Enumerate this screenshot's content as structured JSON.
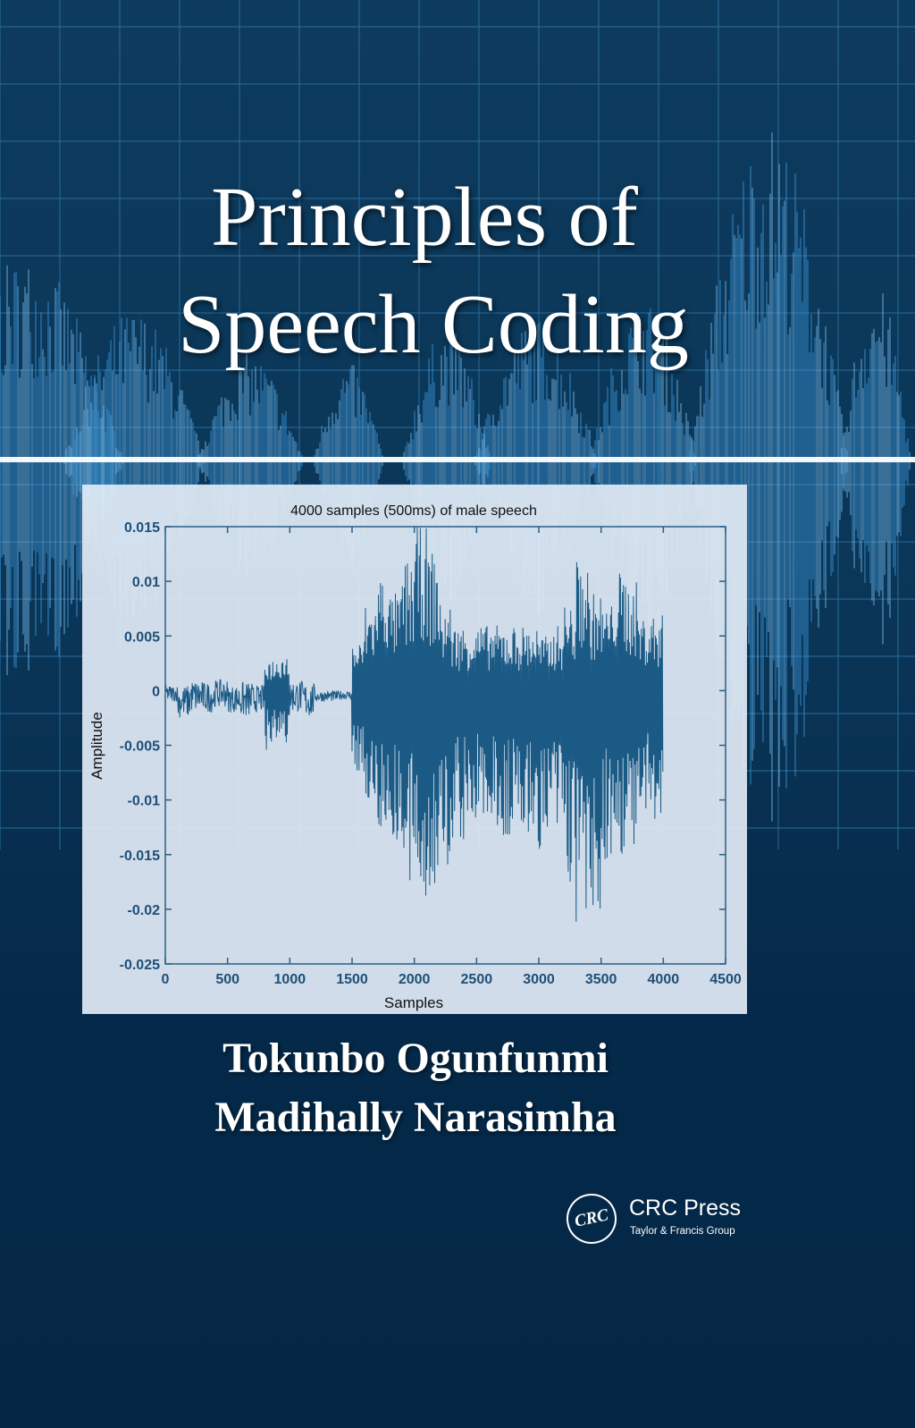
{
  "cover": {
    "title_line1": "Principles of",
    "title_line2": "Speech Coding",
    "authors": [
      "Tokunbo Ogunfunmi",
      "Madihally Narasimha"
    ],
    "publisher": {
      "logo_text": "CRC",
      "name": "CRC Press",
      "subtitle": "Taylor & Francis Group"
    },
    "colors": {
      "background": "#0a3556",
      "waveform": "#1a5a85",
      "accent_blue": "#3a8fd0"
    }
  },
  "chart_data": {
    "type": "line",
    "title": "4000 samples (500ms) of male speech",
    "xlabel": "Samples",
    "ylabel": "Amplitude",
    "xlim": [
      0,
      4500
    ],
    "ylim": [
      -0.025,
      0.015
    ],
    "xticks": [
      "0",
      "500",
      "1000",
      "1500",
      "2000",
      "2500",
      "3000",
      "3500",
      "4000",
      "4500"
    ],
    "yticks": [
      "0.015",
      "0.01",
      "0.005",
      "0",
      "-0.005",
      "-0.01",
      "-0.015",
      "-0.02",
      "-0.025"
    ],
    "grid": false,
    "envelope_step_samples": 100,
    "envelope_min": [
      -0.001,
      -0.0025,
      -0.002,
      -0.002,
      -0.0015,
      -0.002,
      -0.0025,
      -0.002,
      -0.0055,
      -0.005,
      -0.002,
      -0.0025,
      -0.001,
      -0.001,
      -0.0008,
      -0.0075,
      -0.011,
      -0.013,
      -0.014,
      -0.019,
      -0.019,
      -0.019,
      -0.017,
      -0.014,
      -0.013,
      -0.012,
      -0.013,
      -0.014,
      -0.013,
      -0.014,
      -0.015,
      -0.014,
      -0.018,
      -0.022,
      -0.022,
      -0.016,
      -0.015,
      -0.015,
      -0.013,
      -0.013
    ],
    "envelope_max": [
      0.0005,
      0.0005,
      0.001,
      0.0008,
      0.001,
      0.0005,
      0.0008,
      0.0005,
      0.003,
      0.0035,
      0.001,
      0.0008,
      0.0,
      0.0,
      0.0,
      0.0045,
      0.008,
      0.011,
      0.009,
      0.012,
      0.015,
      0.013,
      0.008,
      0.006,
      0.006,
      0.006,
      0.006,
      0.006,
      0.006,
      0.006,
      0.005,
      0.006,
      0.008,
      0.012,
      0.009,
      0.008,
      0.011,
      0.01,
      0.007,
      0.007
    ]
  }
}
